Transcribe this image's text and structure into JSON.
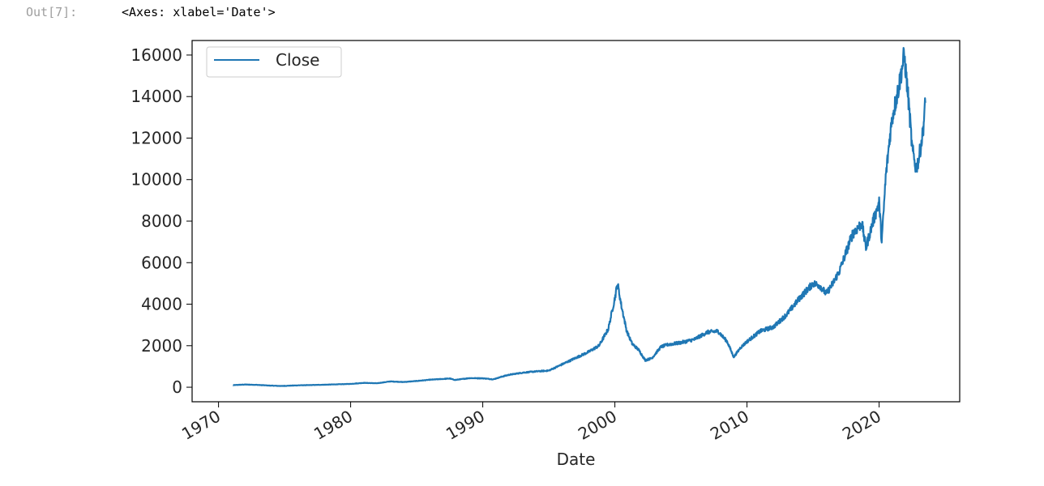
{
  "cell_output": {
    "prompt": "Out[7]:",
    "repr": "<Axes: xlabel='Date'>"
  },
  "chart_data": {
    "type": "line",
    "title": "",
    "xlabel": "Date",
    "ylabel": "",
    "xlim": [
      1968.0,
      2026.1
    ],
    "ylim": [
      -700,
      16700
    ],
    "x_ticks": [
      1970,
      1980,
      1990,
      2000,
      2010,
      2020
    ],
    "x_tick_labels": [
      "1970",
      "1980",
      "1990",
      "2000",
      "2010",
      "2020"
    ],
    "y_ticks": [
      0,
      2000,
      4000,
      6000,
      8000,
      10000,
      12000,
      14000,
      16000
    ],
    "y_tick_labels": [
      "0",
      "2000",
      "4000",
      "6000",
      "8000",
      "10000",
      "12000",
      "14000",
      "16000"
    ],
    "grid": false,
    "legend_position": "upper-left",
    "series": [
      {
        "name": "Close",
        "color": "#1f77b4",
        "x": [
          1971.1,
          1972.0,
          1973.0,
          1974.0,
          1974.8,
          1976.0,
          1978.0,
          1980.0,
          1981.0,
          1982.0,
          1983.0,
          1984.0,
          1985.0,
          1986.0,
          1987.5,
          1987.9,
          1989.0,
          1990.0,
          1990.8,
          1991.5,
          1992.0,
          1993.0,
          1994.0,
          1995.0,
          1996.0,
          1997.0,
          1998.0,
          1998.8,
          1999.5,
          2000.0,
          2000.2,
          2000.5,
          2000.9,
          2001.3,
          2001.8,
          2002.3,
          2002.8,
          2003.5,
          2004.0,
          2005.0,
          2006.0,
          2007.0,
          2007.8,
          2008.5,
          2009.0,
          2009.5,
          2010.0,
          2011.0,
          2012.0,
          2013.0,
          2014.0,
          2015.0,
          2015.5,
          2016.0,
          2016.5,
          2017.0,
          2018.0,
          2018.7,
          2019.0,
          2019.5,
          2020.0,
          2020.2,
          2020.5,
          2020.8,
          2021.0,
          2021.5,
          2021.9,
          2022.2,
          2022.5,
          2022.8,
          2023.0,
          2023.3,
          2023.5
        ],
        "values": [
          100,
          130,
          110,
          75,
          60,
          90,
          120,
          160,
          210,
          190,
          280,
          250,
          300,
          360,
          420,
          350,
          440,
          430,
          380,
          520,
          600,
          700,
          760,
          800,
          1100,
          1400,
          1700,
          2000,
          2800,
          4300,
          5000,
          3900,
          2700,
          2100,
          1800,
          1300,
          1400,
          1950,
          2050,
          2150,
          2300,
          2650,
          2700,
          2200,
          1450,
          1900,
          2200,
          2700,
          2900,
          3500,
          4300,
          5000,
          4900,
          4500,
          5000,
          5600,
          7400,
          7900,
          6700,
          7900,
          8900,
          7000,
          10100,
          12000,
          13000,
          14500,
          16000,
          14000,
          11500,
          10500,
          11000,
          12200,
          13700
        ]
      }
    ]
  }
}
